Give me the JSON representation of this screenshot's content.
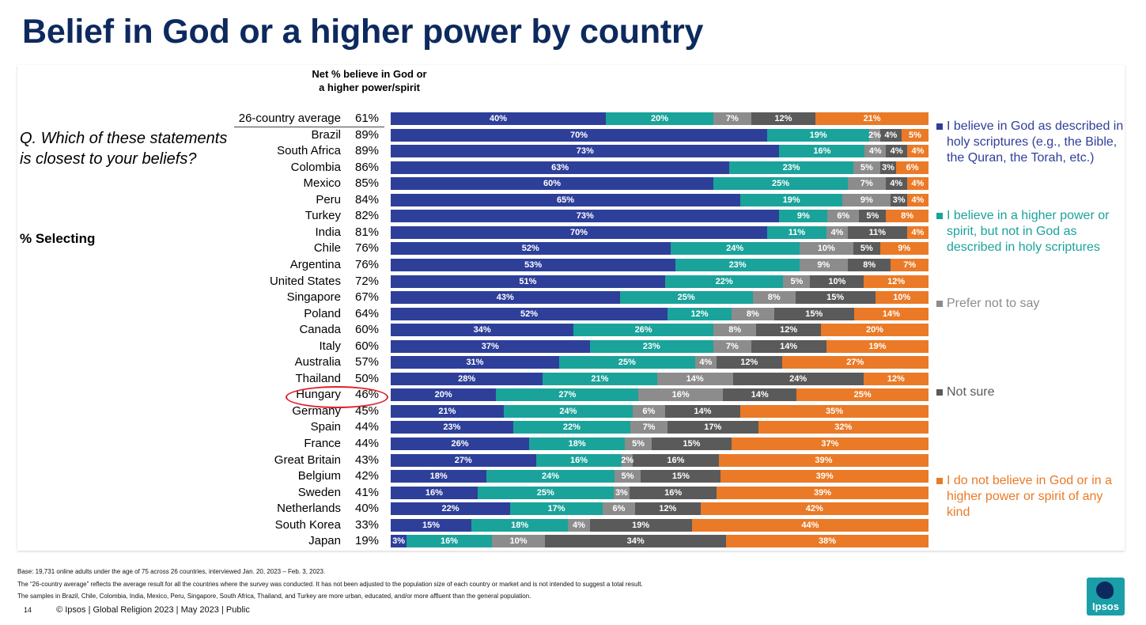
{
  "title": "Belief in God or a higher power by country",
  "question": "Q. Which of these statements is closest to your beliefs?",
  "selecting": "% Selecting",
  "net_header": "Net % believe in God or a higher power/spirit",
  "colors": {
    "god": "#2e3f9a",
    "higher_power": "#1aa39a",
    "prefer_not": "#8c8c8c",
    "not_sure": "#5a5a5a",
    "no_belief": "#ea7a27",
    "title": "#0d2a5e",
    "highlight": "#e0202a"
  },
  "chart_data": {
    "type": "bar",
    "orientation": "horizontal",
    "stacked": true,
    "title": "Belief in God or a higher power by country",
    "categories": [
      "26-country average",
      "Brazil",
      "South Africa",
      "Colombia",
      "Mexico",
      "Peru",
      "Turkey",
      "India",
      "Chile",
      "Argentina",
      "United States",
      "Singapore",
      "Poland",
      "Canada",
      "Italy",
      "Australia",
      "Thailand",
      "Hungary",
      "Germany",
      "Spain",
      "France",
      "Great Britain",
      "Belgium",
      "Sweden",
      "Netherlands",
      "South Korea",
      "Japan"
    ],
    "net": [
      "61%",
      "89%",
      "89%",
      "86%",
      "85%",
      "84%",
      "82%",
      "81%",
      "76%",
      "76%",
      "72%",
      "67%",
      "64%",
      "60%",
      "60%",
      "57%",
      "50%",
      "46%",
      "45%",
      "44%",
      "44%",
      "43%",
      "42%",
      "41%",
      "40%",
      "33%",
      "19%"
    ],
    "series": [
      {
        "name": "I believe in God as described in holy scriptures (e.g., the Bible, the Quran, the Torah, etc.)",
        "values": [
          40,
          70,
          73,
          63,
          60,
          65,
          73,
          70,
          52,
          53,
          51,
          43,
          52,
          34,
          37,
          31,
          28,
          20,
          21,
          23,
          26,
          27,
          18,
          16,
          22,
          15,
          3
        ]
      },
      {
        "name": "I believe in a higher power or spirit, but not in God as described in holy scriptures",
        "values": [
          20,
          19,
          16,
          23,
          25,
          19,
          9,
          11,
          24,
          23,
          22,
          25,
          12,
          26,
          23,
          25,
          21,
          27,
          24,
          22,
          18,
          16,
          24,
          25,
          17,
          18,
          16
        ]
      },
      {
        "name": "Prefer not to say",
        "values": [
          7,
          2,
          4,
          5,
          7,
          9,
          6,
          4,
          10,
          9,
          5,
          8,
          8,
          8,
          7,
          4,
          14,
          16,
          6,
          7,
          5,
          2,
          5,
          3,
          6,
          4,
          10
        ]
      },
      {
        "name": "Not sure",
        "values": [
          12,
          4,
          4,
          3,
          4,
          3,
          5,
          11,
          5,
          8,
          10,
          15,
          15,
          12,
          14,
          12,
          24,
          14,
          14,
          17,
          15,
          16,
          15,
          16,
          12,
          19,
          34
        ]
      },
      {
        "name": "I do not believe in God or in a higher power or spirit of any kind",
        "values": [
          21,
          5,
          4,
          6,
          4,
          4,
          8,
          4,
          9,
          7,
          12,
          10,
          14,
          20,
          19,
          27,
          12,
          25,
          35,
          32,
          37,
          39,
          39,
          39,
          42,
          44,
          38
        ]
      }
    ],
    "value_suffix": "%",
    "highlighted_category": "Hungary",
    "legend_position": "right"
  },
  "legend": [
    {
      "key": "god",
      "label": "I believe in God as described in holy scriptures (e.g., the Bible, the Quran, the Torah, etc.)"
    },
    {
      "key": "higher_power",
      "label": "I believe in a higher power or spirit, but not in God as described in holy scriptures"
    },
    {
      "key": "prefer_not",
      "label": "Prefer not to say"
    },
    {
      "key": "not_sure",
      "label": "Not sure"
    },
    {
      "key": "no_belief",
      "label": "I do not believe in God or in a higher power or spirit of any kind"
    }
  ],
  "notes": [
    "Base: 19,731 online adults under the age of 75 across 26 countries, interviewed Jan. 20, 2023 – Feb. 3, 2023.",
    "The “26-country average” reflects the average result for all the countries where the survey was conducted. It has not been adjusted to the population size of each country or market and is not intended to suggest a total result.",
    "The samples in Brazil, Chile, Colombia, India, Mexico, Peru, Singapore, South Africa, Thailand, and Turkey are more urban, educated, and/or more affluent than the general population."
  ],
  "footer": {
    "page": "14",
    "text": "© Ipsos | Global Religion 2023 | May 2023 | Public"
  },
  "logo_text": "Ipsos"
}
